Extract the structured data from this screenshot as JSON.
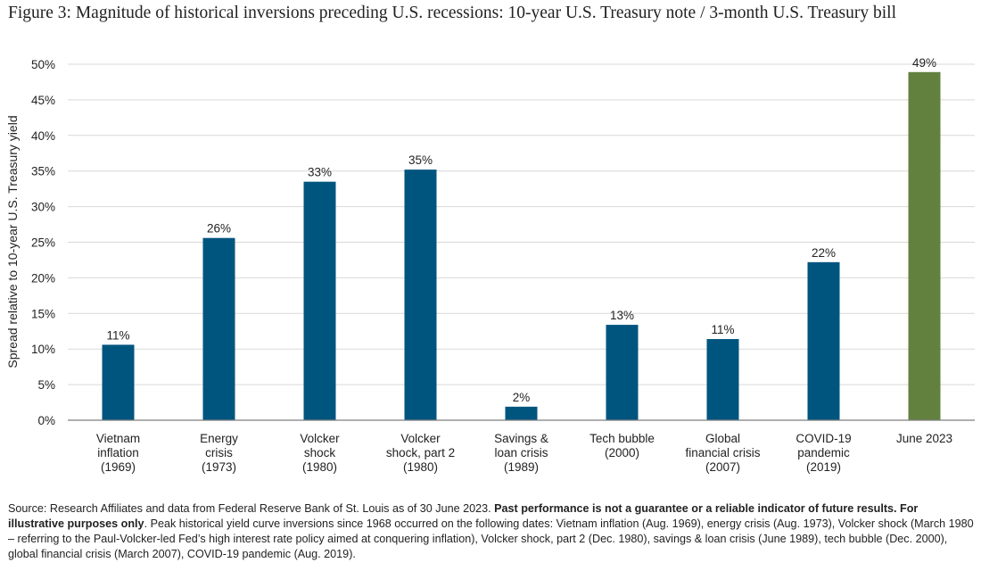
{
  "title": "Figure 3: Magnitude of historical inversions preceding U.S. recessions: 10-year U.S. Treasury note / 3-month U.S. Treasury bill",
  "colors": {
    "bar": "#00557f",
    "highlight": "#62813f",
    "axis": "#7f7f7f",
    "grid": "#d9d9d9"
  },
  "chart_data": {
    "type": "bar",
    "categories": [
      [
        "Vietnam",
        "inflation",
        "(1969)"
      ],
      [
        "Energy",
        "crisis",
        "(1973)"
      ],
      [
        "Volcker",
        "shock",
        "(1980)"
      ],
      [
        "Volcker",
        "shock, part 2",
        "(1980)"
      ],
      [
        "Savings &",
        "loan crisis",
        "(1989)"
      ],
      [
        "Tech bubble",
        "(2000)"
      ],
      [
        "Global",
        "financial crisis",
        "(2007)"
      ],
      [
        "COVID-19",
        "pandemic",
        "(2019)"
      ],
      [
        "June 2023"
      ]
    ],
    "values": [
      10.6,
      25.6,
      33.5,
      35.2,
      1.9,
      13.4,
      11.4,
      22.2,
      48.9
    ],
    "data_labels": [
      "11%",
      "26%",
      "33%",
      "35%",
      "2%",
      "13%",
      "11%",
      "22%",
      "49%"
    ],
    "highlight_index": 8,
    "ylabel": "Spread relative to 10-year U.S. Treasury yield",
    "ylim": [
      0,
      50
    ],
    "yticks": [
      0,
      5,
      10,
      15,
      20,
      25,
      30,
      35,
      40,
      45,
      50
    ],
    "ytick_labels": [
      "0%",
      "5%",
      "10%",
      "15%",
      "20%",
      "25%",
      "30%",
      "35%",
      "40%",
      "45%",
      "50%"
    ],
    "grid": true,
    "legend": "none"
  },
  "source": {
    "intro": "Source: Research Affiliates and data from Federal Reserve Bank of St. Louis as of 30 June 2023. ",
    "bold": "Past performance is not a guarantee or a reliable indicator of future results. For illustrative purposes only",
    "rest": ". Peak historical yield curve inversions since 1968 occurred on the following dates: Vietnam inflation (Aug. 1969), energy crisis (Aug. 1973), Volcker shock (March 1980 – referring to the Paul-Volcker-led Fed’s high interest rate policy aimed at conquering inflation), Volcker shock, part 2 (Dec. 1980), savings & loan crisis (June 1989), tech bubble (Dec. 2000), global financial crisis (March 2007), COVID-19 pandemic (Aug. 2019)."
  }
}
